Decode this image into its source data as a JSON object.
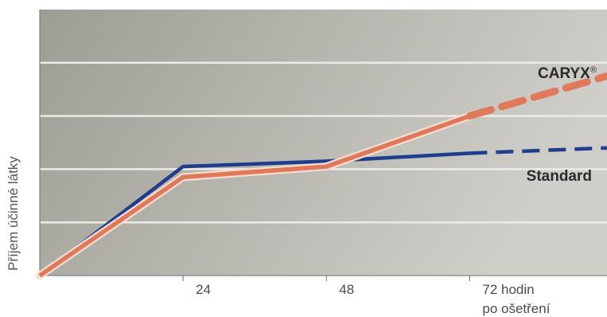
{
  "chart_data": {
    "type": "line",
    "title": "",
    "xlabel": "",
    "ylabel": "Příjem účinné látky",
    "x_ticks": [
      {
        "value": 24,
        "label": "24",
        "label2": ""
      },
      {
        "value": 48,
        "label": "48",
        "label2": ""
      },
      {
        "value": 72,
        "label": "72 hodin",
        "label2": "po ošetření"
      }
    ],
    "xlim": [
      0,
      95
    ],
    "ylim": [
      0,
      5
    ],
    "grid": true,
    "series": [
      {
        "name": "Standard",
        "color": "#1f3d8c",
        "solid": {
          "x": [
            0,
            24,
            48,
            72
          ],
          "y": [
            0,
            2.05,
            2.15,
            2.3
          ]
        },
        "dashed": {
          "x": [
            72,
            95
          ],
          "y": [
            2.3,
            2.4
          ]
        }
      },
      {
        "name": "CARYX",
        "name_sup": "®",
        "color": "#e0785a",
        "solid": {
          "x": [
            0,
            24,
            48,
            72
          ],
          "y": [
            0,
            1.85,
            2.05,
            3.0
          ]
        },
        "dashed": {
          "x": [
            72,
            95
          ],
          "y": [
            3.0,
            3.75
          ]
        }
      }
    ]
  }
}
